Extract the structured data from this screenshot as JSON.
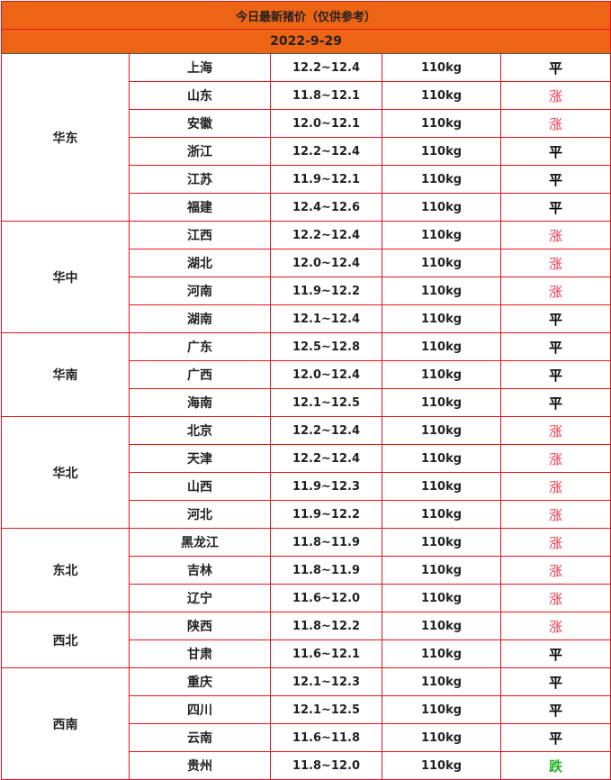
{
  "title": "今日最新猪价（仅供参考）",
  "date": "2022-9-29",
  "colors": {
    "header_bg": "#ec6414",
    "border": "#e8141c",
    "up": "#f0344a",
    "flat": "#000000",
    "down": "#22b422"
  },
  "trend_labels": {
    "up": "涨",
    "flat": "平",
    "down": "跌"
  },
  "regions": [
    {
      "name": "华东",
      "rows": [
        {
          "province": "上海",
          "price": "12.2~12.4",
          "weight": "110kg",
          "trend": "flat",
          "trend_label": "平"
        },
        {
          "province": "山东",
          "price": "11.8~12.1",
          "weight": "110kg",
          "trend": "up",
          "trend_label": "涨"
        },
        {
          "province": "安徽",
          "price": "12.0~12.1",
          "weight": "110kg",
          "trend": "up",
          "trend_label": "涨"
        },
        {
          "province": "浙江",
          "price": "12.2~12.4",
          "weight": "110kg",
          "trend": "flat",
          "trend_label": "平"
        },
        {
          "province": "江苏",
          "price": "11.9~12.1",
          "weight": "110kg",
          "trend": "flat",
          "trend_label": "平"
        },
        {
          "province": "福建",
          "price": "12.4~12.6",
          "weight": "110kg",
          "trend": "flat",
          "trend_label": "平"
        }
      ]
    },
    {
      "name": "华中",
      "rows": [
        {
          "province": "江西",
          "price": "12.2~12.4",
          "weight": "110kg",
          "trend": "up",
          "trend_label": "涨"
        },
        {
          "province": "湖北",
          "price": "12.0~12.4",
          "weight": "110kg",
          "trend": "up",
          "trend_label": "涨"
        },
        {
          "province": "河南",
          "price": "11.9~12.2",
          "weight": "110kg",
          "trend": "up",
          "trend_label": "涨"
        },
        {
          "province": "湖南",
          "price": "12.1~12.4",
          "weight": "110kg",
          "trend": "flat",
          "trend_label": "平"
        }
      ]
    },
    {
      "name": "华南",
      "rows": [
        {
          "province": "广东",
          "price": "12.5~12.8",
          "weight": "110kg",
          "trend": "flat",
          "trend_label": "平"
        },
        {
          "province": "广西",
          "price": "12.0~12.4",
          "weight": "110kg",
          "trend": "flat",
          "trend_label": "平"
        },
        {
          "province": "海南",
          "price": "12.1~12.5",
          "weight": "110kg",
          "trend": "flat",
          "trend_label": "平"
        }
      ]
    },
    {
      "name": "华北",
      "rows": [
        {
          "province": "北京",
          "price": "12.2~12.4",
          "weight": "110kg",
          "trend": "up",
          "trend_label": "涨"
        },
        {
          "province": "天津",
          "price": "12.2~12.4",
          "weight": "110kg",
          "trend": "up",
          "trend_label": "涨"
        },
        {
          "province": "山西",
          "price": "11.9~12.3",
          "weight": "110kg",
          "trend": "up",
          "trend_label": "涨"
        },
        {
          "province": "河北",
          "price": "11.9~12.2",
          "weight": "110kg",
          "trend": "up",
          "trend_label": "涨"
        }
      ]
    },
    {
      "name": "东北",
      "rows": [
        {
          "province": "黑龙江",
          "price": "11.8~11.9",
          "weight": "110kg",
          "trend": "up",
          "trend_label": "涨"
        },
        {
          "province": "吉林",
          "price": "11.8~11.9",
          "weight": "110kg",
          "trend": "up",
          "trend_label": "涨"
        },
        {
          "province": "辽宁",
          "price": "11.6~12.0",
          "weight": "110kg",
          "trend": "up",
          "trend_label": "涨"
        }
      ]
    },
    {
      "name": "西北",
      "rows": [
        {
          "province": "陕西",
          "price": "11.8~12.2",
          "weight": "110kg",
          "trend": "up",
          "trend_label": "涨"
        },
        {
          "province": "甘肃",
          "price": "11.6~12.1",
          "weight": "110kg",
          "trend": "flat",
          "trend_label": "平"
        }
      ]
    },
    {
      "name": "西南",
      "rows": [
        {
          "province": "重庆",
          "price": "12.1~12.3",
          "weight": "110kg",
          "trend": "flat",
          "trend_label": "平"
        },
        {
          "province": "四川",
          "price": "12.1~12.5",
          "weight": "110kg",
          "trend": "flat",
          "trend_label": "平"
        },
        {
          "province": "云南",
          "price": "11.6~11.8",
          "weight": "110kg",
          "trend": "flat",
          "trend_label": "平"
        },
        {
          "province": "贵州",
          "price": "11.8~12.0",
          "weight": "110kg",
          "trend": "down",
          "trend_label": "跌"
        }
      ]
    }
  ]
}
